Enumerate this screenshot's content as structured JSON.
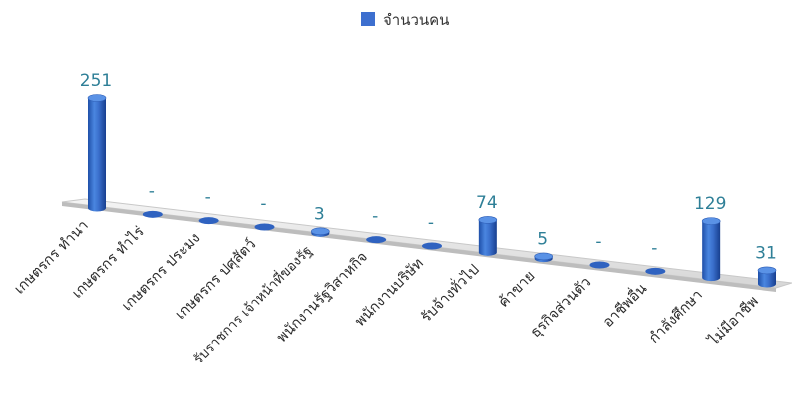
{
  "chart_data": {
    "type": "bar",
    "title": "",
    "xlabel": "",
    "ylabel": "",
    "legend": {
      "position": "top-center"
    },
    "grid": false,
    "ylim": [
      0,
      251
    ],
    "categories": [
      "เกษตรกร ทำนา",
      "เกษตรกร ทำไร่",
      "เกษตรกร ประมง",
      "เกษตรกร ปศุสัตว์",
      "รับราชการ เจ้าหน้าที่ของรัฐ",
      "พนักงานรัฐวิสาหกิจ",
      "พนักงานบริษัท",
      "รับจ้างทั่วไป",
      "ค้าขาย",
      "ธุรกิจส่วนตัว",
      "อาชีพอื่น",
      "กำลังศึกษา",
      "ไม่มีอาชีพ"
    ],
    "series": [
      {
        "name": "จำนวนคน",
        "color": "#3d6fcf",
        "values": [
          251,
          null,
          null,
          null,
          3,
          null,
          null,
          74,
          5,
          null,
          null,
          129,
          31
        ],
        "data_labels": [
          "251",
          "-",
          "-",
          "-",
          "3",
          "-",
          "-",
          "74",
          "5",
          "-",
          "-",
          "129",
          "31"
        ]
      }
    ]
  }
}
